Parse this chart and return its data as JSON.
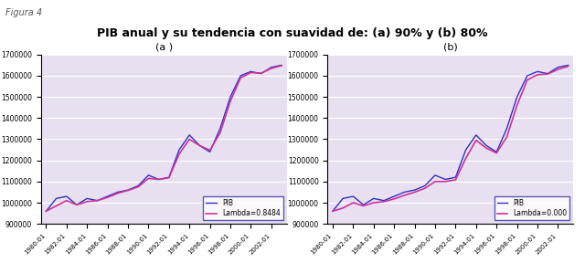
{
  "title": "PIB anual y su tendencia con suavidad de: (a) 90% y (b) 80%",
  "figure_label": "Figura 4",
  "subtitle_a": "(a )",
  "subtitle_b": "(b)",
  "years": [
    1980,
    1981,
    1982,
    1983,
    1984,
    1985,
    1986,
    1987,
    1988,
    1989,
    1990,
    1991,
    1992,
    1993,
    1994,
    1995,
    1996,
    1997,
    1998,
    1999,
    2000,
    2001,
    2002,
    2003
  ],
  "x_labels": [
    "1980-01",
    "1982-01",
    "1984-01",
    "1986-01",
    "1988-01",
    "1990-01",
    "1992-01",
    "1994-01",
    "1996-01",
    "1998-01",
    "2000-01",
    "2002-01"
  ],
  "pib": [
    960000,
    1020000,
    1030000,
    990000,
    1020000,
    1010000,
    1030000,
    1050000,
    1060000,
    1080000,
    1130000,
    1110000,
    1120000,
    1250000,
    1320000,
    1270000,
    1240000,
    1350000,
    1500000,
    1600000,
    1620000,
    1610000,
    1640000,
    1650000
  ],
  "lambda_090": [
    960000,
    985000,
    1010000,
    990000,
    1005000,
    1010000,
    1025000,
    1045000,
    1058000,
    1075000,
    1115000,
    1110000,
    1118000,
    1230000,
    1300000,
    1270000,
    1248000,
    1330000,
    1480000,
    1590000,
    1615000,
    1612000,
    1635000,
    1648000
  ],
  "lambda_080": [
    960000,
    975000,
    1000000,
    985000,
    1000000,
    1005000,
    1018000,
    1035000,
    1050000,
    1068000,
    1100000,
    1100000,
    1108000,
    1210000,
    1295000,
    1258000,
    1235000,
    1310000,
    1460000,
    1580000,
    1605000,
    1608000,
    1630000,
    1645000
  ],
  "pib_color": "#3030c0",
  "lambda_color": "#cc3399",
  "bg_color": "#e8e0f0",
  "ylim": [
    900000,
    1700000
  ],
  "yticks": [
    900000,
    1000000,
    1100000,
    1200000,
    1300000,
    1400000,
    1500000,
    1600000,
    1700000
  ],
  "legend_label_pib": "PIB",
  "legend_label_a": "Lambda=0.8484",
  "legend_label_b": "Lambda=0.000"
}
